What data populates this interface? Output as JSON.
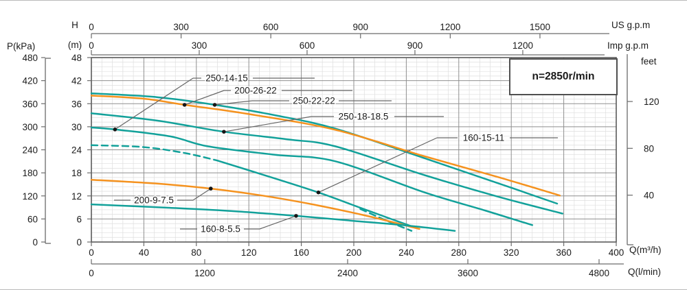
{
  "page": {
    "description": "Pump performance curves chart",
    "background": "#ffffff"
  },
  "annotation": {
    "speed_label": "n=2850r/min"
  },
  "axes": {
    "us_gpm": {
      "title": "US g.p.m",
      "ticks": [
        0,
        300,
        600,
        900,
        1200,
        1500
      ]
    },
    "imp_gpm": {
      "title": "Imp g.p.m",
      "ticks": [
        0,
        300,
        600,
        900,
        1200
      ]
    },
    "feet": {
      "title": "feet",
      "ticks": [
        120,
        80,
        40
      ]
    },
    "p_kpa": {
      "title": "P(kPa)",
      "ticks": [
        480,
        420,
        360,
        300,
        240,
        180,
        120,
        60,
        0
      ]
    },
    "h_m": {
      "title_top": "H",
      "title_bottom": "(m)",
      "ticks": [
        48,
        42,
        36,
        30,
        24,
        18,
        12,
        6,
        0
      ]
    },
    "q_m3h": {
      "title": "Q(m³/h)",
      "ticks": [
        0,
        40,
        80,
        120,
        160,
        200,
        240,
        280,
        320,
        360,
        400
      ]
    },
    "q_lmin": {
      "title": "Q(l/min)",
      "ticks": [
        0,
        1200,
        2400,
        3600,
        4800
      ]
    }
  },
  "colors": {
    "teal": "#12a19a",
    "orange": "#f5921e",
    "grid_minor": "#dedede",
    "grid_major": "#8f8f8f",
    "border": "#5a5a5a",
    "axis_line": "#6a6a6a",
    "leader": "#666666",
    "dot": "#161616",
    "text": "#1a1a1a"
  },
  "chart_data": {
    "type": "line",
    "title": "",
    "speed_annotation": "n=2850r/min",
    "x_axis": {
      "label": "Q(m³/h)",
      "min": 0,
      "max": 400,
      "major_step": 40,
      "minor_step": 8
    },
    "y_axis": {
      "label": "H (m)",
      "min": 0,
      "max": 48,
      "major_step": 6,
      "minor_step": 1.2
    },
    "secondary_x_labels": [
      "US g.p.m",
      "Imp g.p.m",
      "Q(l/min)"
    ],
    "secondary_y_labels": [
      "P(kPa)",
      "feet"
    ],
    "legend_position": "none",
    "grid": true,
    "series": [
      {
        "name": "250-22-22",
        "color": "teal",
        "dash": false,
        "label": "250-22-22",
        "label_dot": [
          94,
          35.7
        ],
        "points": [
          [
            0,
            38.7
          ],
          [
            50,
            37.7
          ],
          [
            94,
            35.7
          ],
          [
            140,
            33.0
          ],
          [
            186,
            29.5
          ],
          [
            254,
            21.8
          ],
          [
            310,
            15.3
          ],
          [
            355,
            10.0
          ]
        ]
      },
      {
        "name": "200-26-22",
        "color": "orange",
        "dash": false,
        "label": "200-26-22",
        "label_dot": [
          71,
          35.7
        ],
        "points": [
          [
            0,
            38.1
          ],
          [
            40,
            37.3
          ],
          [
            71,
            35.7
          ],
          [
            120,
            33.3
          ],
          [
            186,
            29.2
          ],
          [
            254,
            22.3
          ],
          [
            310,
            16.9
          ],
          [
            357,
            12.1
          ]
        ]
      },
      {
        "name": "250-18-18.5",
        "color": "teal",
        "dash": false,
        "label": "250-18-18.5",
        "label_dot": [
          101,
          28.7
        ],
        "points": [
          [
            0,
            33.5
          ],
          [
            50,
            31.6
          ],
          [
            101,
            28.7
          ],
          [
            150,
            26.7
          ],
          [
            186,
            24.9
          ],
          [
            254,
            17.4
          ],
          [
            310,
            11.8
          ],
          [
            359,
            7.4
          ]
        ]
      },
      {
        "name": "250-14-15",
        "color": "teal",
        "dash": false,
        "label": "250-14-15",
        "label_dot": [
          18,
          29.3
        ],
        "points": [
          [
            0,
            29.8
          ],
          [
            18,
            29.3
          ],
          [
            60,
            27.5
          ],
          [
            89,
            24.9
          ],
          [
            140,
            22.7
          ],
          [
            186,
            21.0
          ],
          [
            254,
            12.9
          ],
          [
            300,
            8.2
          ],
          [
            336,
            4.4
          ]
        ]
      },
      {
        "name": "160-15-11",
        "color": "teal",
        "dash": false,
        "label": "160-15-11",
        "label_dot": [
          173,
          12.9
        ],
        "points": [
          [
            96,
            21.2
          ],
          [
            130,
            17.6
          ],
          [
            173,
            12.9
          ],
          [
            205,
            8.9
          ],
          [
            230,
            5.8
          ],
          [
            248,
            3.6
          ]
        ]
      },
      {
        "name": "160-15-11-dashed-head",
        "color": "teal",
        "dash": true,
        "label": null,
        "points": [
          [
            0,
            25.2
          ],
          [
            40,
            24.7
          ],
          [
            72,
            23.1
          ],
          [
            96,
            21.2
          ]
        ]
      },
      {
        "name": "160-15-11-dashed-tail",
        "color": "teal",
        "dash": true,
        "label": null,
        "points": [
          [
            205,
            8.6
          ],
          [
            226,
            5.4
          ],
          [
            244,
            2.9
          ]
        ]
      },
      {
        "name": "200-9-7.5",
        "color": "orange",
        "dash": false,
        "label": "200-9-7.5",
        "label_dot": [
          91,
          13.9
        ],
        "points": [
          [
            0,
            16.2
          ],
          [
            50,
            15.2
          ],
          [
            91,
            13.9
          ],
          [
            130,
            12.1
          ],
          [
            170,
            9.7
          ],
          [
            210,
            6.8
          ],
          [
            250,
            3.4
          ]
        ]
      },
      {
        "name": "160-8-5.5",
        "color": "teal",
        "dash": false,
        "label": "160-8-5.5",
        "label_dot": [
          156,
          6.8
        ],
        "points": [
          [
            0,
            9.8
          ],
          [
            60,
            8.9
          ],
          [
            110,
            8.0
          ],
          [
            156,
            6.8
          ],
          [
            200,
            5.5
          ],
          [
            240,
            4.3
          ],
          [
            277,
            2.9
          ]
        ]
      }
    ]
  }
}
